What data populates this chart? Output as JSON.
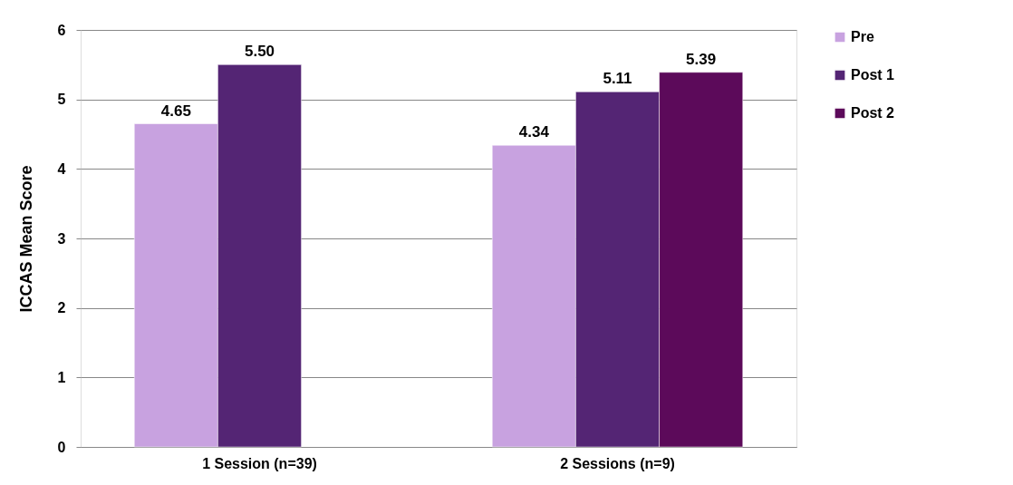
{
  "chart_data": {
    "type": "bar",
    "ylabel": "ICCAS Mean Score",
    "categories": [
      "1 Session (n=39)",
      "2 Sessions (n=9)"
    ],
    "series": [
      {
        "name": "Pre",
        "color": "#c8a2e0",
        "values": [
          4.65,
          4.34
        ],
        "value_labels": [
          "4.65",
          "4.34"
        ]
      },
      {
        "name": "Post 1",
        "color": "#542574",
        "values": [
          5.5,
          5.11
        ],
        "value_labels": [
          "5.50",
          "5.11"
        ]
      },
      {
        "name": "Post 2",
        "color": "#5c0a5a",
        "values": [
          null,
          5.39
        ],
        "value_labels": [
          null,
          "5.39"
        ]
      }
    ],
    "ylim": [
      0,
      6
    ],
    "yticks": [
      0,
      1,
      2,
      3,
      4,
      5,
      6
    ],
    "grid": "y",
    "legend": "right"
  }
}
